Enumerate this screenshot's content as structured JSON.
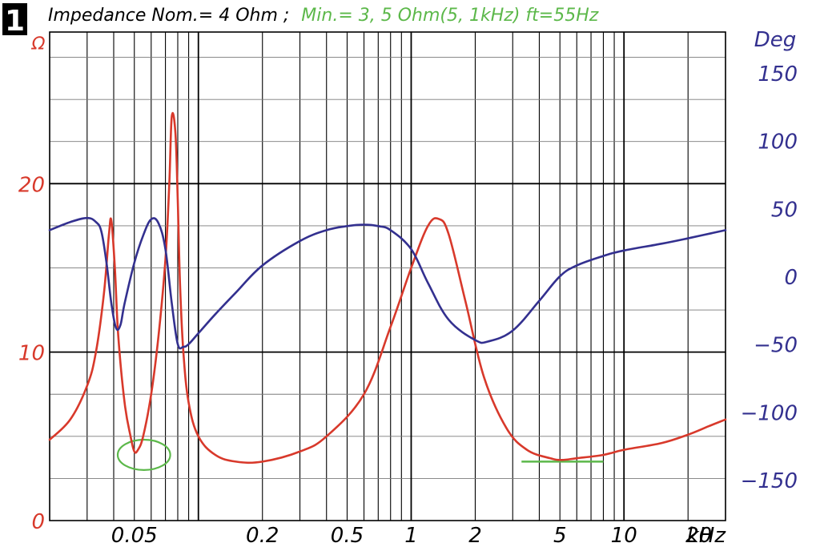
{
  "figure_number": "1",
  "title_black": "Impedance Nom.= 4 Ohm ;",
  "title_green": "Min.= 3, 5 Ohm(5, 1kHz) ft=55Hz",
  "colors": {
    "impedance": "#d8392b",
    "phase": "#33308f",
    "marker": "#5cb84a",
    "grid": "#000000",
    "badge": "#000000"
  },
  "chart_data": {
    "type": "line",
    "x_scale": "log",
    "xlim": [
      0.02,
      30
    ],
    "x_unit_label": "kHz",
    "x_tick_labels": [
      {
        "x": 0.05,
        "label": "0.05"
      },
      {
        "x": 0.2,
        "label": "0.2"
      },
      {
        "x": 0.5,
        "label": "0.5"
      },
      {
        "x": 1,
        "label": "1"
      },
      {
        "x": 2,
        "label": "2"
      },
      {
        "x": 5,
        "label": "5"
      },
      {
        "x": 10,
        "label": "10"
      },
      {
        "x": 20,
        "label": "20"
      }
    ],
    "left_axis": {
      "label": "Ω",
      "ylim": [
        0,
        29
      ],
      "tick_labels": [
        {
          "y": 0,
          "label": "0"
        },
        {
          "y": 10,
          "label": "10"
        },
        {
          "y": 20,
          "label": "20"
        }
      ]
    },
    "right_axis": {
      "label": "Deg",
      "ylim": [
        -180,
        180
      ],
      "tick_labels": [
        {
          "y": 150,
          "label": "150"
        },
        {
          "y": 100,
          "label": "100"
        },
        {
          "y": 50,
          "label": "50"
        },
        {
          "y": 0,
          "label": "0"
        },
        {
          "y": -50,
          "label": "−50"
        },
        {
          "y": -100,
          "label": "−100"
        },
        {
          "y": -150,
          "label": "−150"
        }
      ]
    },
    "grid": true,
    "series": [
      {
        "axis": "left",
        "x": [
          0.02,
          0.025,
          0.03,
          0.033,
          0.036,
          0.038,
          0.039,
          0.0405,
          0.042,
          0.045,
          0.048,
          0.05,
          0.052,
          0.055,
          0.06,
          0.065,
          0.07,
          0.073,
          0.075,
          0.078,
          0.08,
          0.082,
          0.085,
          0.09,
          0.1,
          0.12,
          0.15,
          0.2,
          0.3,
          0.4,
          0.6,
          0.8,
          1.0,
          1.2,
          1.35,
          1.5,
          1.8,
          2.2,
          2.8,
          3.5,
          4.5,
          5.1,
          6,
          8,
          10,
          15,
          20,
          25,
          30
        ],
        "y": [
          4.8,
          6.0,
          8.0,
          10.0,
          13.5,
          17.0,
          17.8,
          15.0,
          11.0,
          7.0,
          5.0,
          4.1,
          4.2,
          5.0,
          7.5,
          11.0,
          15.5,
          20.0,
          24.0,
          23.0,
          19.0,
          14.0,
          10.0,
          7.0,
          5.0,
          3.9,
          3.5,
          3.5,
          4.1,
          5.0,
          7.5,
          11.5,
          15.0,
          17.5,
          17.9,
          17.0,
          13.0,
          8.5,
          5.5,
          4.2,
          3.7,
          3.6,
          3.7,
          3.9,
          4.2,
          4.6,
          5.1,
          5.6,
          6.0
        ]
      },
      {
        "axis": "right",
        "x": [
          0.02,
          0.025,
          0.03,
          0.033,
          0.035,
          0.037,
          0.039,
          0.041,
          0.043,
          0.045,
          0.05,
          0.055,
          0.06,
          0.065,
          0.07,
          0.075,
          0.08,
          0.085,
          0.09,
          0.1,
          0.12,
          0.15,
          0.2,
          0.3,
          0.4,
          0.5,
          0.6,
          0.7,
          0.8,
          1.0,
          1.2,
          1.5,
          2.0,
          2.3,
          3.0,
          4.0,
          5.0,
          6.0,
          8.0,
          10,
          15,
          20,
          30
        ],
        "y": [
          34,
          40,
          43,
          40,
          33,
          10,
          -20,
          -38,
          -36,
          -20,
          10,
          30,
          42,
          39,
          20,
          -20,
          -50,
          -52,
          -50,
          -42,
          -28,
          -12,
          8,
          26,
          34,
          37,
          38,
          37,
          34,
          20,
          -5,
          -32,
          -47,
          -48,
          -40,
          -18,
          0,
          8,
          15,
          19,
          24,
          28,
          34
        ]
      }
    ]
  },
  "annotations": [
    {
      "type": "ellipse",
      "cx": 0.0555,
      "cy": 3.9,
      "rx_octaves": 0.41,
      "ry_ohm": 0.9
    },
    {
      "type": "hline",
      "x1": 3.3,
      "x2": 8.0,
      "y": 3.5
    }
  ]
}
